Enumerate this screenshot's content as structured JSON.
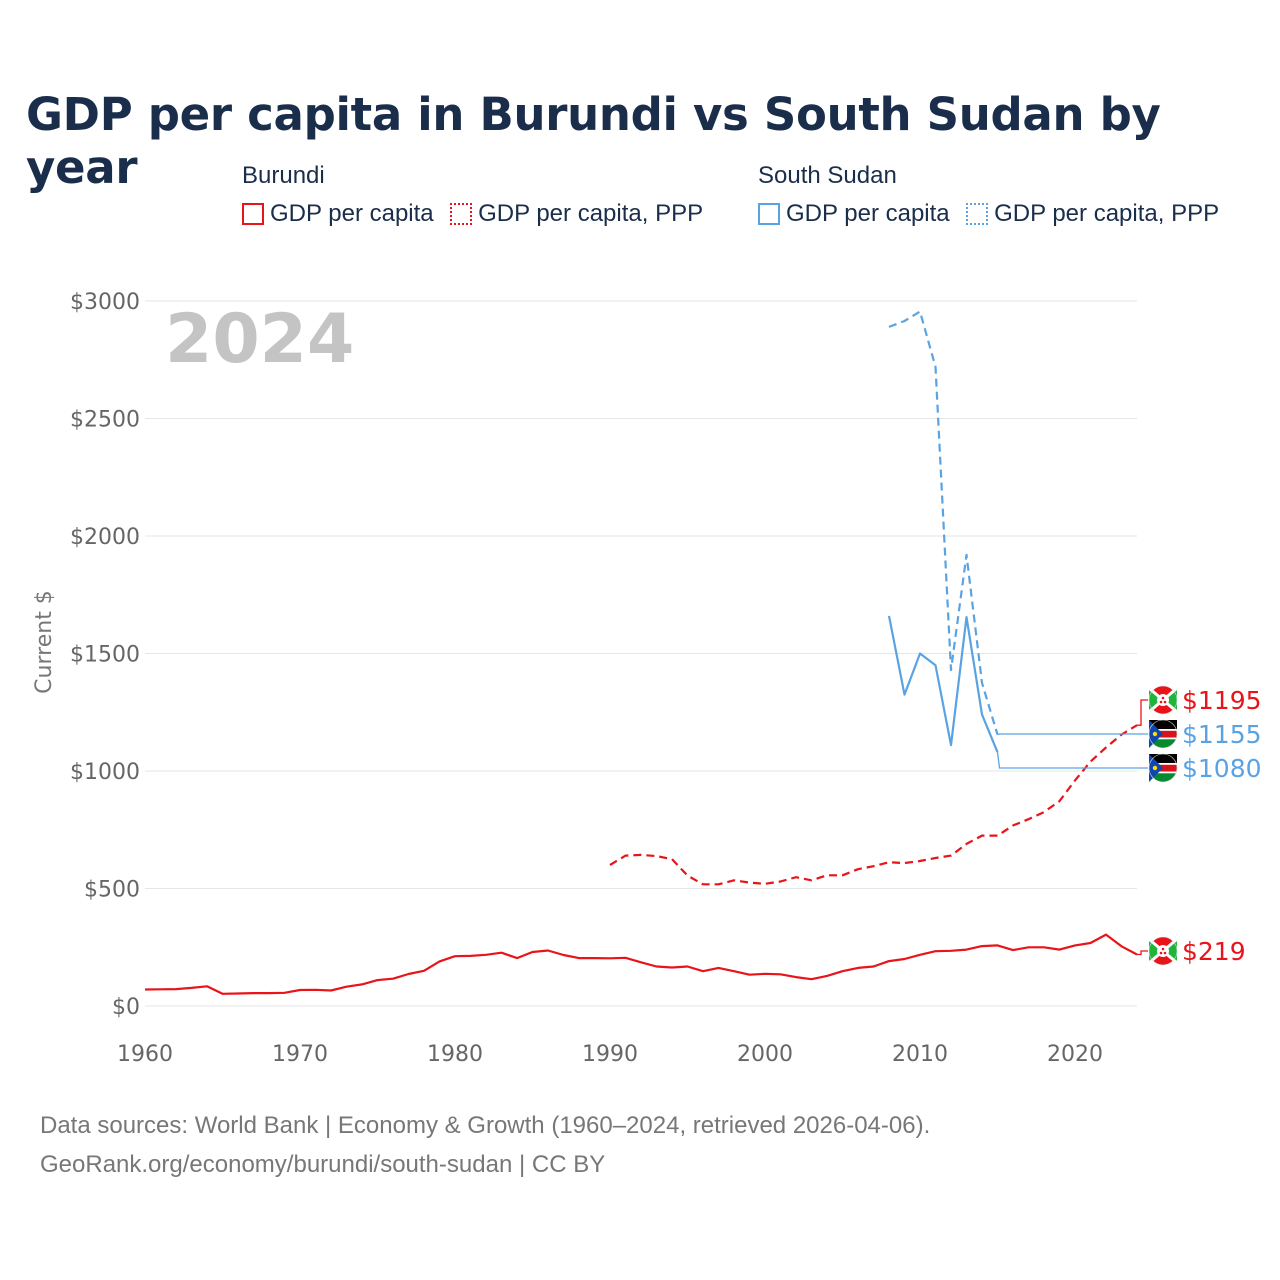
{
  "title": "GDP per capita in Burundi vs South Sudan by year",
  "legend": {
    "groups": [
      {
        "name": "Burundi",
        "items": [
          "GDP per capita",
          "GDP per capita, PPP"
        ],
        "color": "#e8141a"
      },
      {
        "name": "South Sudan",
        "items": [
          "GDP per capita",
          "GDP per capita, PPP"
        ],
        "color": "#5aa3e3"
      }
    ]
  },
  "year_label": "2024",
  "footer": {
    "line1": "Data sources: World Bank | Economy & Growth (1960–2024, retrieved 2026-04-06).",
    "line2": "GeoRank.org/economy/burundi/south-sudan | CC BY"
  },
  "chart_data": {
    "type": "line",
    "title": "GDP per capita in Burundi vs South Sudan by year",
    "xlabel": "",
    "ylabel": "Current $",
    "xlim": [
      1960,
      2024
    ],
    "ylim": [
      0,
      3000
    ],
    "x_ticks": [
      1960,
      1970,
      1980,
      1990,
      2000,
      2010,
      2020
    ],
    "y_ticks": [
      0,
      500,
      1000,
      1500,
      2000,
      2500,
      3000
    ],
    "y_tick_labels": [
      "$0",
      "$500",
      "$1000",
      "$1500",
      "$2000",
      "$2500",
      "$3000"
    ],
    "grid": true,
    "series": [
      {
        "name": "Burundi GDP per capita",
        "country": "Burundi",
        "color": "#e8141a",
        "style": "solid",
        "end_label": "$219",
        "x": [
          1960,
          1961,
          1962,
          1963,
          1964,
          1965,
          1966,
          1967,
          1968,
          1969,
          1970,
          1971,
          1972,
          1973,
          1974,
          1975,
          1976,
          1977,
          1978,
          1979,
          1980,
          1981,
          1982,
          1983,
          1984,
          1985,
          1986,
          1987,
          1988,
          1989,
          1990,
          1991,
          1992,
          1993,
          1994,
          1995,
          1996,
          1997,
          1998,
          1999,
          2000,
          2001,
          2002,
          2003,
          2004,
          2005,
          2006,
          2007,
          2008,
          2009,
          2010,
          2011,
          2012,
          2013,
          2014,
          2015,
          2016,
          2017,
          2018,
          2019,
          2020,
          2021,
          2022,
          2023,
          2024
        ],
        "values": [
          70,
          71,
          72,
          77,
          84,
          52,
          53,
          55,
          55,
          56,
          68,
          69,
          66,
          82,
          92,
          110,
          116,
          136,
          150,
          190,
          212,
          213,
          218,
          227,
          204,
          230,
          236,
          217,
          204,
          204,
          203,
          205,
          186,
          168,
          164,
          168,
          148,
          162,
          148,
          133,
          137,
          135,
          123,
          114,
          128,
          148,
          162,
          168,
          191,
          200,
          218,
          233,
          235,
          240,
          255,
          258,
          238,
          250,
          250,
          240,
          258,
          268,
          304,
          254,
          219
        ]
      },
      {
        "name": "Burundi GDP per capita, PPP",
        "country": "Burundi",
        "color": "#e8141a",
        "style": "dashed",
        "end_label": "$1195",
        "x": [
          1990,
          1991,
          1992,
          1993,
          1994,
          1995,
          1996,
          1997,
          1998,
          1999,
          2000,
          2001,
          2002,
          2003,
          2004,
          2005,
          2006,
          2007,
          2008,
          2009,
          2010,
          2011,
          2012,
          2013,
          2014,
          2015,
          2016,
          2017,
          2018,
          2019,
          2020,
          2021,
          2022,
          2023,
          2024
        ],
        "values": [
          600,
          640,
          643,
          638,
          625,
          555,
          518,
          518,
          535,
          525,
          520,
          530,
          548,
          535,
          556,
          556,
          582,
          595,
          612,
          608,
          617,
          630,
          640,
          690,
          725,
          725,
          768,
          795,
          825,
          872,
          960,
          1040,
          1100,
          1155,
          1195
        ]
      },
      {
        "name": "South Sudan GDP per capita",
        "country": "South Sudan",
        "color": "#5aa3e3",
        "style": "solid",
        "end_label": "$1080",
        "x": [
          2008,
          2009,
          2010,
          2011,
          2012,
          2013,
          2014,
          2015
        ],
        "values": [
          1660,
          1325,
          1500,
          1450,
          1110,
          1655,
          1240,
          1080
        ]
      },
      {
        "name": "South Sudan GDP per capita, PPP",
        "country": "South Sudan",
        "color": "#5aa3e3",
        "style": "dashed",
        "end_label": "$1155",
        "x": [
          2008,
          2009,
          2010,
          2011,
          2012,
          2013,
          2014,
          2015
        ],
        "values": [
          2890,
          2915,
          2955,
          2720,
          1430,
          1920,
          1375,
          1155
        ]
      }
    ]
  }
}
